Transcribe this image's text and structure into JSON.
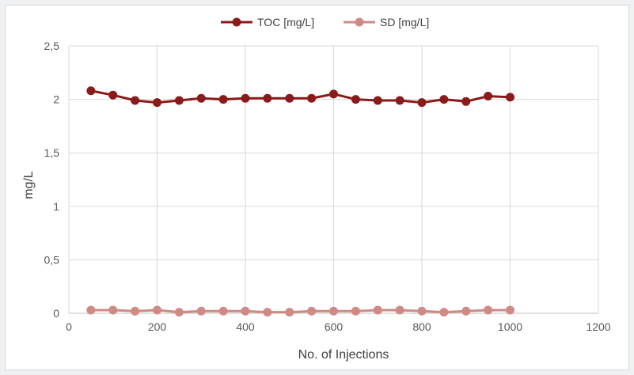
{
  "chart_data": {
    "type": "line",
    "title": "",
    "xlabel": "No. of Injections",
    "ylabel": "mg/L",
    "xlim": [
      0,
      1200
    ],
    "ylim": [
      0,
      2.5
    ],
    "x_ticks": [
      0,
      200,
      400,
      600,
      800,
      1000,
      1200
    ],
    "y_ticks": [
      0,
      0.5,
      1,
      1.5,
      2,
      2.5
    ],
    "y_tick_labels": [
      "0",
      "0,5",
      "1",
      "1,5",
      "2",
      "2,5"
    ],
    "x_tick_labels": [
      "0",
      "200",
      "400",
      "600",
      "800",
      "1000",
      "1200"
    ],
    "grid": "vertical and horizontal",
    "legend_position": "top",
    "x": [
      50,
      100,
      150,
      200,
      250,
      300,
      350,
      400,
      450,
      500,
      550,
      600,
      650,
      700,
      750,
      800,
      850,
      900,
      950,
      1000
    ],
    "series": [
      {
        "name": "TOC [mg/L]",
        "color": "#8b1a1a",
        "values": [
          2.08,
          2.04,
          1.99,
          1.97,
          1.99,
          2.01,
          2.0,
          2.01,
          2.01,
          2.01,
          2.01,
          2.05,
          2.0,
          1.99,
          1.99,
          1.97,
          2.0,
          1.98,
          2.03,
          2.02
        ]
      },
      {
        "name": "SD [mg/L]",
        "color": "#cf8a84",
        "values": [
          0.03,
          0.03,
          0.02,
          0.03,
          0.01,
          0.02,
          0.02,
          0.02,
          0.01,
          0.01,
          0.02,
          0.02,
          0.02,
          0.03,
          0.03,
          0.02,
          0.01,
          0.02,
          0.03,
          0.03
        ]
      }
    ]
  }
}
